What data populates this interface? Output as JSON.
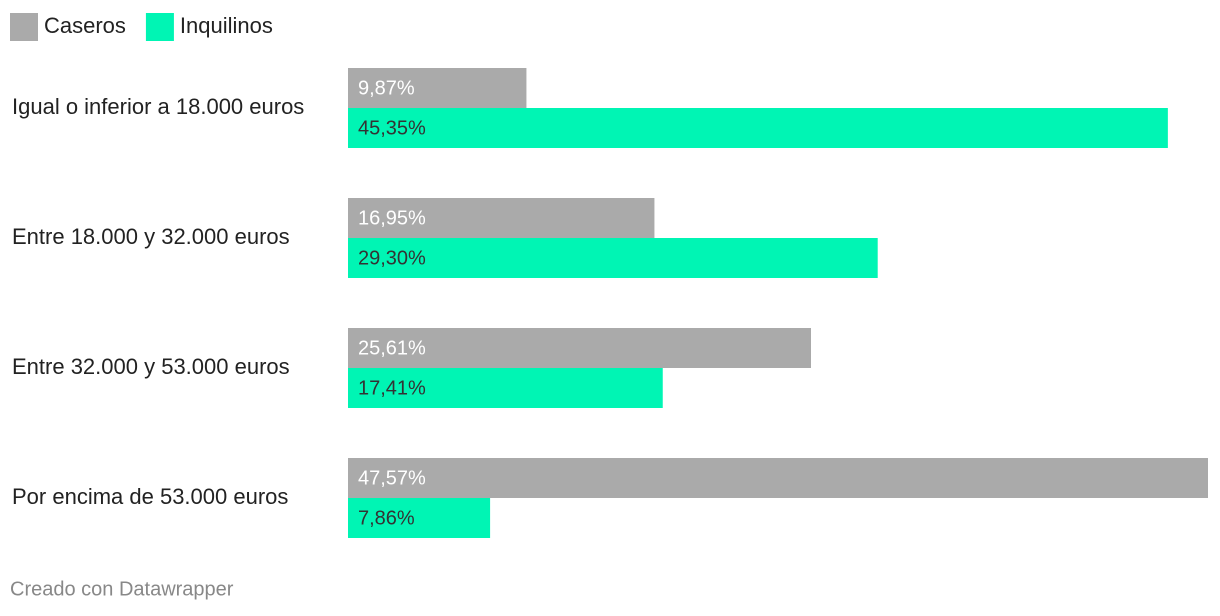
{
  "chart_data": {
    "type": "grouped-bar",
    "orientation": "horizontal",
    "categories": [
      "Igual o inferior a 18.000 euros",
      "Entre 18.000 y 32.000 euros",
      "Entre 32.000 y 53.000 euros",
      "Por encima de 53.000 euros"
    ],
    "series": [
      {
        "name": "Caseros",
        "color": "#aaaaaa",
        "label_color": "#ffffff",
        "values": [
          9.87,
          16.95,
          25.61,
          47.57
        ],
        "value_labels": [
          "9,87%",
          "16,95%",
          "25,61%",
          "47,57%"
        ]
      },
      {
        "name": "Inquilinos",
        "color": "#00f5b4",
        "label_color": "#333333",
        "values": [
          45.35,
          29.3,
          17.41,
          7.86
        ],
        "value_labels": [
          "45,35%",
          "29,30%",
          "17,41%",
          "7,86%"
        ]
      }
    ],
    "source": "Creado con Datawrapper"
  }
}
